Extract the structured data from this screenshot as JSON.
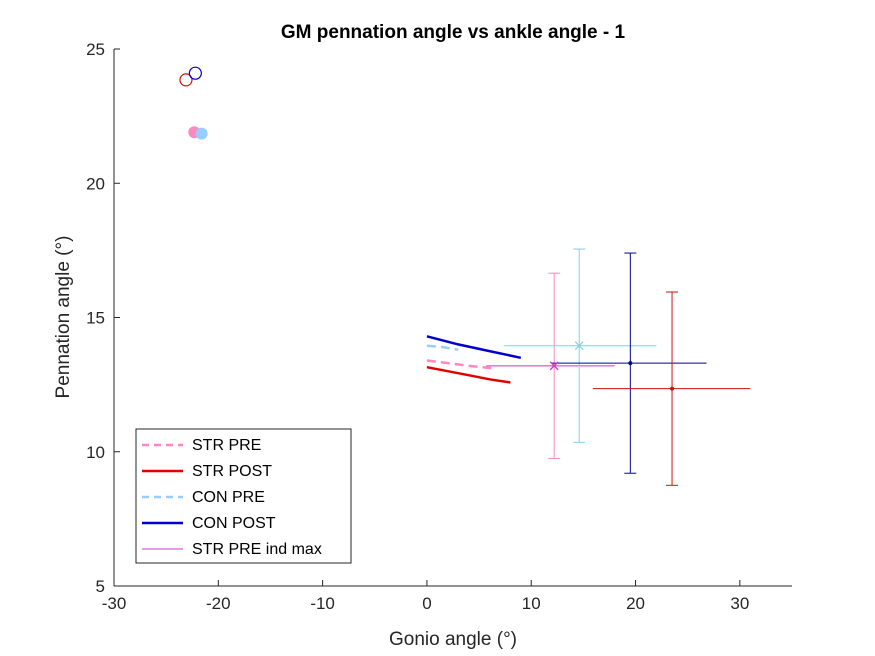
{
  "chart_data": {
    "type": "line",
    "title": "GM pennation angle vs ankle angle - 1",
    "xlabel": "Gonio angle (°)",
    "ylabel": "Pennation angle (°)",
    "xlim": [
      -30,
      35
    ],
    "ylim": [
      5,
      25
    ],
    "xticks": [
      -30,
      -20,
      -10,
      0,
      10,
      20,
      30
    ],
    "yticks": [
      5,
      10,
      15,
      20,
      25
    ],
    "xtick_labels": [
      "-30",
      "-20",
      "-10",
      "0",
      "10",
      "20",
      "30"
    ],
    "ytick_labels": [
      "5",
      "10",
      "15",
      "20",
      "25"
    ],
    "grid": false,
    "legend_position": "bottom-left",
    "series": [
      {
        "name": "STR PRE",
        "color": "#ff88c2",
        "dash": "dashed",
        "x": [
          0,
          2,
          4,
          6.5
        ],
        "y": [
          13.4,
          13.3,
          13.2,
          13.1
        ]
      },
      {
        "name": "STR POST",
        "color": "#e00000",
        "dash": "solid",
        "x": [
          0,
          2,
          4,
          6,
          8
        ],
        "y": [
          13.15,
          13.0,
          12.85,
          12.7,
          12.58
        ]
      },
      {
        "name": "CON PRE",
        "color": "#99ccff",
        "dash": "dashed",
        "x": [
          0,
          1.5,
          3
        ],
        "y": [
          13.95,
          13.9,
          13.8
        ]
      },
      {
        "name": "CON POST",
        "color": "#0000cc",
        "dash": "solid",
        "x": [
          0,
          3,
          6,
          9
        ],
        "y": [
          14.3,
          14.0,
          13.75,
          13.5
        ]
      },
      {
        "name": "STR PRE ind max",
        "color": "#cc33cc",
        "dash": "solid",
        "x": [],
        "y": []
      }
    ],
    "errorbars": [
      {
        "color": "#ff88c2",
        "x": 12.2,
        "y": 13.2,
        "xerr": [
          0,
          0
        ],
        "yerr": [
          3.45,
          3.45
        ]
      },
      {
        "color": "#cc33cc",
        "x": 12.2,
        "y": 13.2,
        "xerr": [
          6.5,
          5.8
        ],
        "yerr": [
          0,
          0
        ]
      },
      {
        "color": "#87ceeb",
        "x": 14.6,
        "y": 13.95,
        "xerr": [
          0,
          0
        ],
        "yerr": [
          3.6,
          3.6
        ]
      },
      {
        "color": "#66e0e0",
        "x": 14.6,
        "y": 13.95,
        "xerr": [
          7.2,
          7.4
        ],
        "yerr": [
          0,
          0
        ]
      },
      {
        "color": "#000099",
        "x": 19.5,
        "y": 13.3,
        "xerr": [
          7.6,
          7.3
        ],
        "yerr": [
          4.1,
          4.1
        ]
      },
      {
        "color": "#cc1111",
        "x": 23.5,
        "y": 12.35,
        "xerr": [
          7.6,
          7.5
        ],
        "yerr": [
          3.6,
          3.6
        ]
      }
    ],
    "centre_markers": [
      {
        "color": "#ff88c2",
        "x": 12.2,
        "y": 13.2,
        "marker": "x"
      },
      {
        "color": "#cc33cc",
        "x": 12.2,
        "y": 13.2,
        "marker": "x"
      },
      {
        "color": "#87ceeb",
        "x": 14.6,
        "y": 13.95,
        "marker": "x"
      },
      {
        "color": "#000099",
        "x": 19.5,
        "y": 13.3,
        "marker": "dot"
      },
      {
        "color": "#cc1111",
        "x": 23.5,
        "y": 12.35,
        "marker": "dot"
      }
    ],
    "scatter": [
      {
        "x": -23.1,
        "y": 23.85,
        "color": "#cc1111",
        "filled": false
      },
      {
        "x": -22.2,
        "y": 24.1,
        "color": "#0000cc",
        "filled": false
      },
      {
        "x": -22.3,
        "y": 21.9,
        "color": "#ff88c2",
        "filled": true
      },
      {
        "x": -21.6,
        "y": 21.85,
        "color": "#99ccff",
        "filled": true
      }
    ]
  }
}
